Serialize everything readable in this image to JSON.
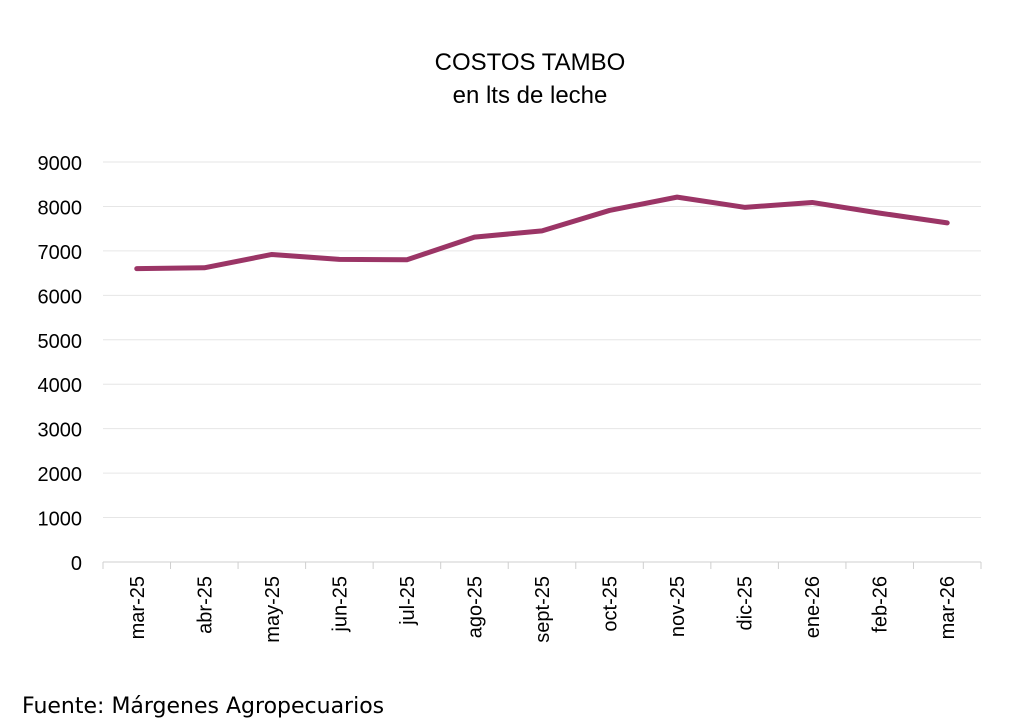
{
  "chart_data": {
    "type": "line",
    "title": "COSTOS TAMBO",
    "subtitle": "en lts de leche",
    "xlabel": "",
    "ylabel": "",
    "ylim": [
      0,
      9000
    ],
    "yticks": [
      0,
      1000,
      2000,
      3000,
      4000,
      5000,
      6000,
      7000,
      8000,
      9000
    ],
    "grid": true,
    "legend": "none",
    "categories": [
      "mar-25",
      "abr-25",
      "may-25",
      "jun-25",
      "jul-25",
      "ago-25",
      "sept-25",
      "oct-25",
      "nov-25",
      "dic-25",
      "ene-26",
      "feb-26",
      "mar-26"
    ],
    "series": [
      {
        "values": [
          6600,
          6620,
          6920,
          6810,
          6800,
          7310,
          7450,
          7910,
          8210,
          7980,
          8090,
          7850,
          7630
        ],
        "color": "#9b3566"
      }
    ]
  },
  "source": "Fuente: Márgenes Agropecuarios"
}
